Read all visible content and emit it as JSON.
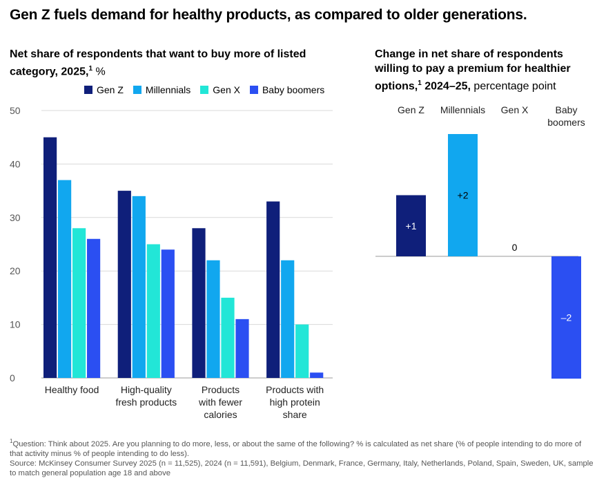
{
  "title": "Gen Z fuels demand for healthy products, as compared to older generations.",
  "colors": {
    "gen_z": "#0f1f7a",
    "millennials": "#11a7ef",
    "gen_x": "#22e6d7",
    "baby_boomers": "#2b4ff2"
  },
  "left_chart": {
    "subtitle_bold": "Net share of respondents that want to buy more of listed category, 2025,",
    "subtitle_sup": "1",
    "subtitle_unit": " %"
  },
  "right_chart": {
    "subtitle_bold": "Change in net share of respondents willing to pay a premium for healthier options,",
    "subtitle_sup": "1",
    "subtitle_bold2": " 2024–25,",
    "subtitle_unit": " percentage point"
  },
  "chart_data": [
    {
      "type": "bar",
      "title": "Net share of respondents that want to buy more of listed category, 2025, %",
      "categories": [
        [
          "Healthy food"
        ],
        [
          "High-quality",
          "fresh products"
        ],
        [
          "Products",
          "with fewer",
          "calories"
        ],
        [
          "Products with",
          "high protein",
          "share"
        ]
      ],
      "series": [
        {
          "name": "Gen Z",
          "color_key": "gen_z",
          "values": [
            45,
            35,
            28,
            33
          ]
        },
        {
          "name": "Millennials",
          "color_key": "millennials",
          "values": [
            37,
            34,
            22,
            22
          ]
        },
        {
          "name": "Gen X",
          "color_key": "gen_x",
          "values": [
            28,
            25,
            15,
            10
          ]
        },
        {
          "name": "Baby boomers",
          "color_key": "baby_boomers",
          "values": [
            26,
            24,
            11,
            1
          ]
        }
      ],
      "yticks": [
        "0",
        "10",
        "20",
        "30",
        "40",
        "50"
      ],
      "ylim": [
        0,
        50
      ],
      "grid": true,
      "legend": "top"
    },
    {
      "type": "bar",
      "title": "Change in net share of respondents willing to pay a premium for healthier options, 2024–25, percentage point",
      "categories": [
        [
          "Gen Z"
        ],
        [
          "Millennials"
        ],
        [
          "Gen X"
        ],
        [
          "Baby",
          "boomers"
        ]
      ],
      "color_keys": [
        "gen_z",
        "millennials",
        "gen_x",
        "baby_boomers"
      ],
      "values": [
        1,
        2,
        0,
        -2
      ],
      "value_labels": [
        "+1",
        "+2",
        "0",
        "–2"
      ],
      "ylim": [
        -2,
        2
      ]
    }
  ],
  "footnote": {
    "line1_sup": "1",
    "line1": "Question: Think about 2025. Are you planning to do more, less, or about the same of the following? % is calculated as net share (% of people intending to do more of that activity minus % of people intending to do less).",
    "line2": "Source: McKinsey Consumer Survey 2025 (n = 11,525), 2024 (n = 11,591), Belgium, Denmark, France, Germany, Italy, Netherlands, Poland, Spain, Sweden, UK, sample to match general population age 18 and above"
  }
}
